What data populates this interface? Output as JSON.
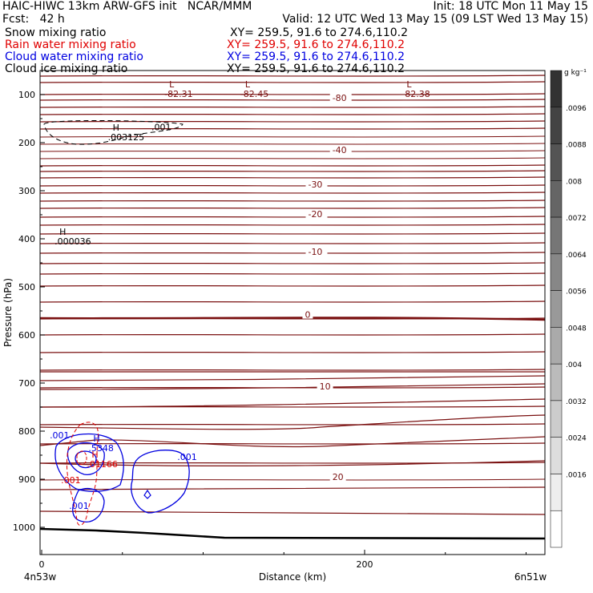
{
  "header": {
    "line1_left": "HAIC-HIWC 13km ARW-GFS init   NCAR/MMM",
    "line1_right": "Init: 18 UTC Mon 11 May 15",
    "fcst": "Fcst:   42 h",
    "valid": "Valid: 12 UTC Wed 13 May 15 (09 LST Wed 13 May 15)",
    "fields": [
      {
        "name": "Snow mixing ratio",
        "xy": "XY= 259.5, 91.6 to 274.6,110.2",
        "color": "#000000"
      },
      {
        "name": "Rain water mixing ratio",
        "xy": "XY= 259.5, 91.6 to 274.6,110.2",
        "color": "#e00000"
      },
      {
        "name": "Cloud water mixing ratio",
        "xy": "XY= 259.5, 91.6 to 274.6,110.2",
        "color": "#0000e0"
      },
      {
        "name": "Cloud ice mixing ratio",
        "xy": "XY= 259.5, 91.6 to 274.6,110.2",
        "color": "#000000"
      }
    ]
  },
  "chart_data": {
    "type": "contour",
    "xlabel": "Distance (km)",
    "ylabel": "Pressure (hPa)",
    "xlim": [
      0,
      310
    ],
    "ylim": [
      1050,
      50
    ],
    "x_ticks": [
      0,
      200
    ],
    "y_ticks": [
      100,
      200,
      300,
      400,
      500,
      600,
      700,
      800,
      900,
      1000
    ],
    "left_endpoint": "4n53w",
    "right_endpoint": "6n51w",
    "colorbar": {
      "unit": "g kg⁻¹",
      "labels": [
        ".0096",
        ".0088",
        ".008",
        ".0072",
        ".0064",
        ".0056",
        ".0048",
        ".004",
        ".0032",
        ".0024",
        ".0016"
      ]
    },
    "temperature_contour_labels": [
      {
        "label": "-80",
        "x": 180,
        "p": 110
      },
      {
        "label": "-40",
        "x": 180,
        "p": 218
      },
      {
        "label": "-30",
        "x": 165,
        "p": 290
      },
      {
        "label": "-20",
        "x": 165,
        "p": 352
      },
      {
        "label": "-10",
        "x": 165,
        "p": 430
      },
      {
        "label": "0",
        "x": 163,
        "p": 561
      },
      {
        "label": "10",
        "x": 172,
        "p": 710
      },
      {
        "label": "20",
        "x": 180,
        "p": 898
      }
    ],
    "extrema": [
      {
        "type": "L",
        "value": "-82.31",
        "x": 75,
        "p": 88
      },
      {
        "type": "L",
        "value": "-82.45",
        "x": 122,
        "p": 88
      },
      {
        "type": "L",
        "value": "-82.38",
        "x": 222,
        "p": 88
      },
      {
        "type": "H",
        "value": ".003125",
        "x": 40,
        "p": 178,
        "color": "#000000"
      },
      {
        "type": "H",
        "value": ".000036",
        "x": 7,
        "p": 395,
        "color": "#000000"
      },
      {
        "type": "H",
        "value": ".5348",
        "x": 28,
        "p": 825,
        "color": "#0000e0"
      },
      {
        "type": "H",
        "value": ".01166",
        "x": 27,
        "p": 858,
        "color": "#e00000"
      }
    ],
    "contour_value_labels": [
      {
        "label": ".001",
        "x": 68,
        "p": 174,
        "color": "#000000"
      },
      {
        "label": ".001",
        "x": 5,
        "p": 815,
        "color": "#0000e0"
      },
      {
        "label": ".001",
        "x": 84,
        "p": 860,
        "color": "#0000e0"
      },
      {
        "label": ".001",
        "x": 17,
        "p": 962,
        "color": "#0000e0"
      },
      {
        "label": ".001",
        "x": 12,
        "p": 908,
        "color": "#e00000"
      }
    ]
  }
}
